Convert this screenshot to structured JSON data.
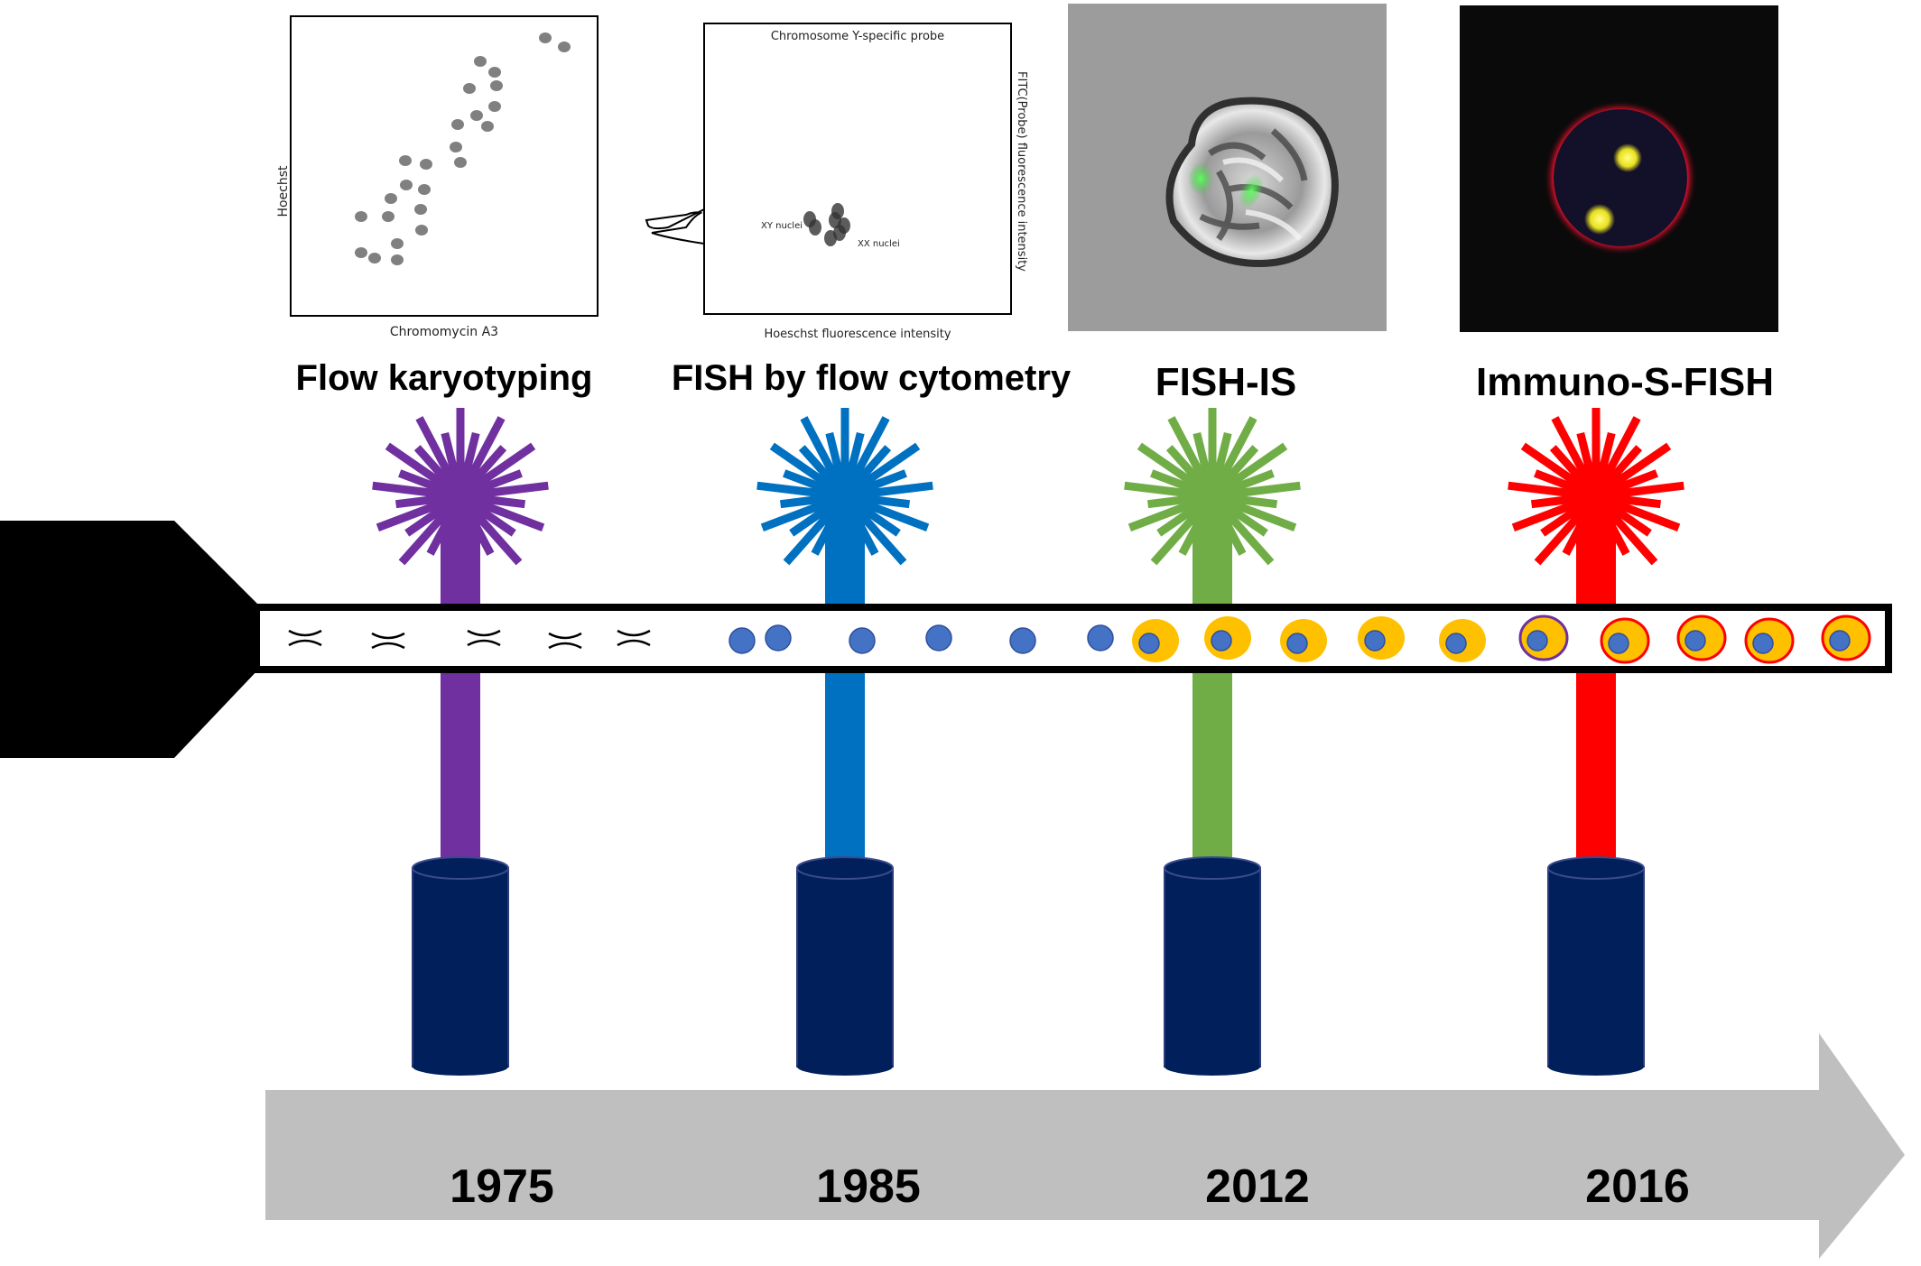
{
  "methods": [
    {
      "title": "Flow karyotyping",
      "year": "1975",
      "color": "#7030A0",
      "plot": {
        "xlabel": "Chromomycin A3",
        "ylabel": "Hoechst"
      }
    },
    {
      "title": "FISH by flow cytometry",
      "year": "1985",
      "color": "#0070C0",
      "plot": {
        "title": "Chromosome Y-specific probe",
        "xlabel": "Hoeschst fluorescence intensity",
        "ylabel": "FITC(Probe) fluorescence intensity",
        "annotation_left": "XY nuclei",
        "annotation_right": "XX nuclei"
      }
    },
    {
      "title": "FISH-IS",
      "year": "2012",
      "color": "#70AD47",
      "image": "grayscale brightfield cell with green FISH spots"
    },
    {
      "title": "Immuno-S-FISH",
      "year": "2016",
      "color": "#FF0000",
      "image": "dark fluorescence cell with red membrane and yellow spots"
    }
  ],
  "colors": {
    "nozzle": "#000000",
    "detector": "#001F5B",
    "timeline_arrow": "#BFBFBF",
    "nucleus": "#4472C4",
    "cell_body": "#FFC000"
  },
  "flow_stream": {
    "particles": [
      "chromosome",
      "chromosome",
      "chromosome",
      "chromosome",
      "chromosome",
      "nucleus",
      "nucleus",
      "nucleus",
      "nucleus",
      "nucleus",
      "nucleus",
      "cell",
      "cell",
      "cell",
      "cell",
      "cell",
      "stained-cell",
      "stained-cell",
      "stained-cell",
      "stained-cell",
      "stained-cell"
    ]
  }
}
